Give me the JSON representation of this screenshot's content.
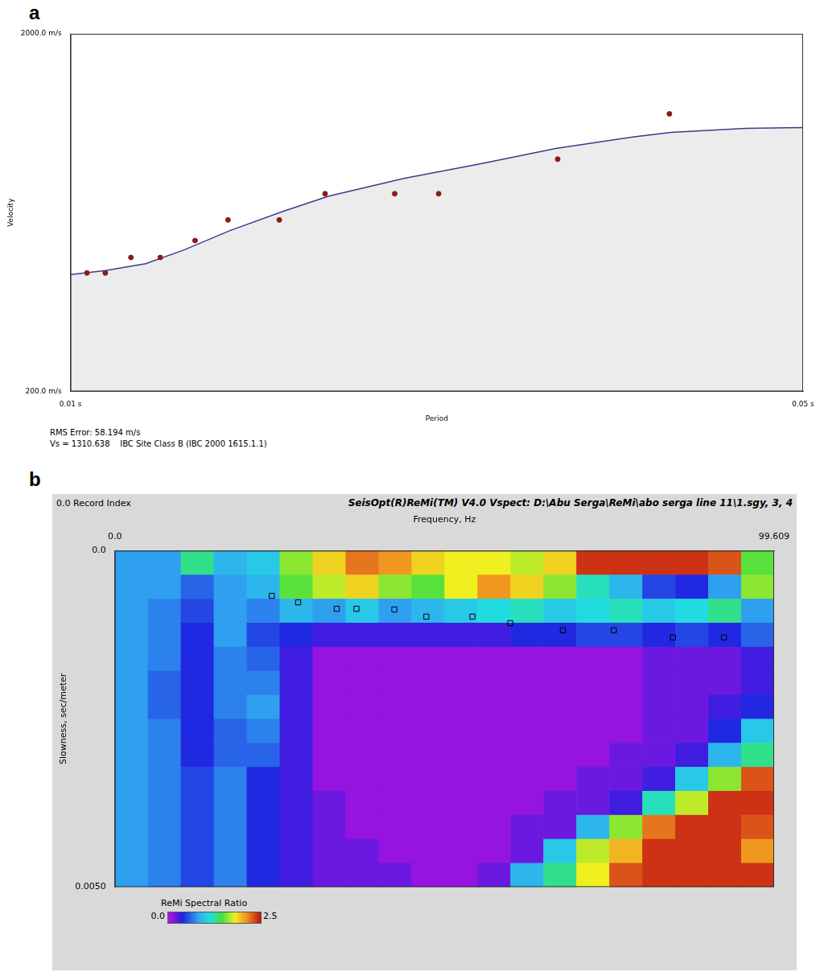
{
  "chart_data": [
    {
      "type": "scatter",
      "label": "a",
      "xlabel": "Period",
      "ylabel": "Velocity",
      "xlim": [
        0.01,
        0.05
      ],
      "ylim": [
        200,
        2000
      ],
      "xticks": [
        {
          "value": 0.01,
          "label": "0.01 s"
        },
        {
          "value": 0.05,
          "label": "0.05 s"
        }
      ],
      "yticks": [
        {
          "value": 200,
          "label": "200.0 m/s"
        },
        {
          "value": 2000,
          "label": "2000.0 m/s"
        }
      ],
      "grid": false,
      "series": [
        {
          "type": "scatter",
          "marker": "circle",
          "color": "#8b1a1a",
          "x": [
            0.0109,
            0.0119,
            0.0133,
            0.0149,
            0.0168,
            0.0186,
            0.0214,
            0.0239,
            0.0277,
            0.0301,
            0.0366,
            0.0427
          ],
          "values": [
            796,
            796,
            874,
            874,
            959,
            1063,
            1063,
            1195,
            1195,
            1195,
            1369,
            1597
          ]
        },
        {
          "type": "line",
          "line_style": "solid",
          "color": "#3c3c8c",
          "x": [
            0.01,
            0.0119,
            0.0141,
            0.0162,
            0.0187,
            0.0216,
            0.0241,
            0.0282,
            0.0324,
            0.0365,
            0.0407,
            0.0428,
            0.0469,
            0.05
          ],
          "values": [
            788,
            808,
            843,
            912,
            1009,
            1106,
            1183,
            1272,
            1346,
            1423,
            1481,
            1504,
            1524,
            1528
          ]
        }
      ],
      "annotations": [
        "RMS Error: 58.194 m/s",
        "Vs = 1310.638    IBC Site Class B (IBC 2000 1615.1.1)"
      ]
    },
    {
      "type": "heatmap",
      "label": "b",
      "title": "SeisOpt(R)ReMi(TM) V4.0 Vspect: D:\\Abu Serga\\ReMi\\abo serga line 11\\1.sgy, 3, 4",
      "subtitle": "0.0 Record Index",
      "xlabel": "Frequency, Hz",
      "ylabel": "Slowness, sec/meter",
      "xlim": [
        0,
        99.609
      ],
      "ylim": [
        0,
        0.005
      ],
      "xticks": [
        {
          "value": 0,
          "label": "0.0"
        },
        99.609
      ],
      "yticks": [
        {
          "value": 0,
          "label": "0.0"
        },
        {
          "value": 0.005,
          "label": "0.0050"
        }
      ],
      "grid": false,
      "cells": [
        [
          0.8,
          0.8,
          1.3,
          0.9,
          1.0,
          1.6,
          1.9,
          2.2,
          2.1,
          1.9,
          1.8,
          1.8,
          1.7,
          1.9,
          2.4,
          2.4,
          2.4,
          2.4,
          2.3,
          1.5
        ],
        [
          0.8,
          0.8,
          0.6,
          0.8,
          0.9,
          1.5,
          1.7,
          1.9,
          1.6,
          1.5,
          1.8,
          2.1,
          1.9,
          1.6,
          1.2,
          0.9,
          0.5,
          0.4,
          0.8,
          1.6
        ],
        [
          0.8,
          0.7,
          0.5,
          0.8,
          0.7,
          0.9,
          0.8,
          1.0,
          0.8,
          0.9,
          1.0,
          1.1,
          1.2,
          1.0,
          1.1,
          1.2,
          1.0,
          1.1,
          1.3,
          0.8
        ],
        [
          0.8,
          0.7,
          0.4,
          0.8,
          0.5,
          0.4,
          0.3,
          0.3,
          0.3,
          0.3,
          0.3,
          0.3,
          0.4,
          0.4,
          0.5,
          0.5,
          0.4,
          0.5,
          0.4,
          0.6
        ],
        [
          0.8,
          0.7,
          0.4,
          0.7,
          0.6,
          0.3,
          0.1,
          0.1,
          0.1,
          0.1,
          0.1,
          0.1,
          0.1,
          0.1,
          0.1,
          0.1,
          0.2,
          0.2,
          0.2,
          0.3
        ],
        [
          0.8,
          0.6,
          0.4,
          0.7,
          0.7,
          0.3,
          0.1,
          0.1,
          0.1,
          0.1,
          0.1,
          0.1,
          0.1,
          0.1,
          0.1,
          0.1,
          0.2,
          0.2,
          0.2,
          0.3
        ],
        [
          0.8,
          0.6,
          0.4,
          0.7,
          0.8,
          0.3,
          0.1,
          0.1,
          0.1,
          0.1,
          0.1,
          0.1,
          0.1,
          0.1,
          0.1,
          0.1,
          0.2,
          0.2,
          0.3,
          0.4
        ],
        [
          0.8,
          0.7,
          0.4,
          0.6,
          0.7,
          0.3,
          0.1,
          0.1,
          0.1,
          0.1,
          0.1,
          0.1,
          0.1,
          0.1,
          0.1,
          0.1,
          0.2,
          0.2,
          0.4,
          1.0
        ],
        [
          0.8,
          0.7,
          0.4,
          0.6,
          0.6,
          0.3,
          0.1,
          0.1,
          0.1,
          0.1,
          0.1,
          0.1,
          0.1,
          0.1,
          0.1,
          0.2,
          0.2,
          0.3,
          0.9,
          1.3
        ],
        [
          0.8,
          0.7,
          0.5,
          0.7,
          0.4,
          0.3,
          0.1,
          0.1,
          0.1,
          0.1,
          0.1,
          0.1,
          0.1,
          0.1,
          0.2,
          0.2,
          0.3,
          1.0,
          1.6,
          2.3
        ],
        [
          0.8,
          0.7,
          0.5,
          0.7,
          0.4,
          0.3,
          0.2,
          0.1,
          0.1,
          0.1,
          0.1,
          0.1,
          0.1,
          0.2,
          0.2,
          0.3,
          1.2,
          1.7,
          2.4,
          2.4
        ],
        [
          0.8,
          0.7,
          0.5,
          0.7,
          0.4,
          0.3,
          0.2,
          0.1,
          0.1,
          0.1,
          0.1,
          0.1,
          0.2,
          0.2,
          0.9,
          1.6,
          2.2,
          2.4,
          2.4,
          2.3
        ],
        [
          0.8,
          0.7,
          0.5,
          0.7,
          0.4,
          0.3,
          0.2,
          0.2,
          0.1,
          0.1,
          0.1,
          0.1,
          0.2,
          1.0,
          1.7,
          2.0,
          2.4,
          2.4,
          2.4,
          2.1
        ],
        [
          0.8,
          0.7,
          0.5,
          0.7,
          0.4,
          0.3,
          0.2,
          0.2,
          0.2,
          0.1,
          0.1,
          0.2,
          0.9,
          1.3,
          1.8,
          2.3,
          2.4,
          2.4,
          2.4,
          2.4
        ]
      ],
      "colorbar": {
        "label": "ReMi Spectral Ratio",
        "range": [
          0,
          2.5
        ],
        "ticks": [
          {
            "value": 0,
            "label": "0.0"
          },
          {
            "value": 2.5,
            "label": "2.5"
          }
        ]
      },
      "series": [
        {
          "type": "scatter",
          "marker": "square",
          "color": "#000000",
          "x": [
            23.72,
            27.7,
            33.53,
            36.51,
            42.23,
            47.07,
            54.03,
            59.74,
            67.69,
            75.39,
            84.33,
            92.03
          ],
          "values": [
            0.000672,
            0.000768,
            0.000864,
            0.000864,
            0.000874,
            0.000981,
            0.000981,
            0.001077,
            0.001183,
            0.001183,
            0.00129,
            0.00129
          ]
        }
      ]
    }
  ]
}
